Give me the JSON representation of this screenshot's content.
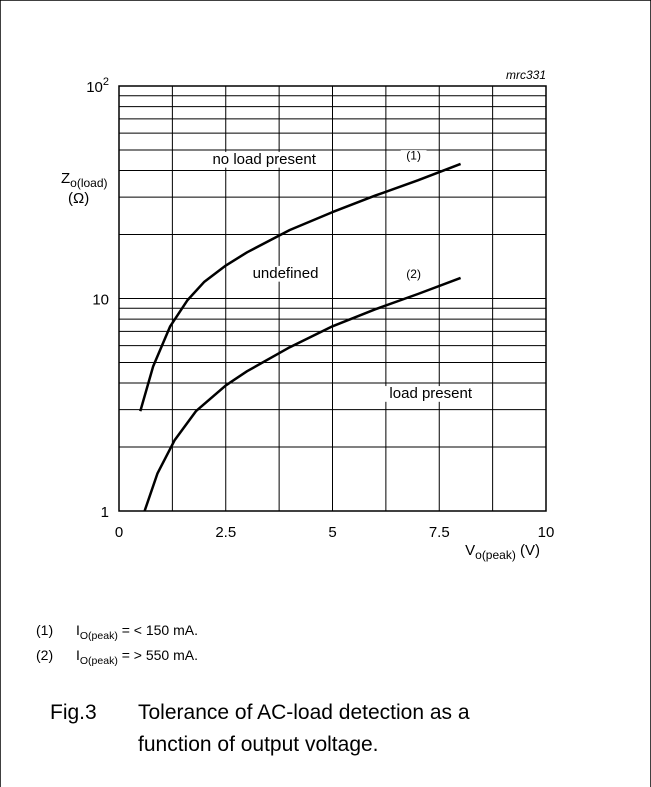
{
  "figure_code": "mrc331",
  "chart_data": {
    "type": "line",
    "x_scale": "linear",
    "y_scale": "log",
    "xlim": [
      0,
      10
    ],
    "ylim": [
      1,
      100
    ],
    "x_ticks": [
      "0",
      "2.5",
      "5",
      "7.5",
      "10"
    ],
    "x_tick_values": [
      0,
      2.5,
      5,
      7.5,
      10
    ],
    "y_ticks": [
      "1",
      "10",
      "10^2"
    ],
    "y_tick_values": [
      1,
      10,
      100
    ],
    "xlabel": {
      "main": "V",
      "sub": "o(peak)",
      "unit": " (V)"
    },
    "ylabel": {
      "main": "Z",
      "sub": "o(load)",
      "unit": "(Ω)"
    },
    "grid": true,
    "series": [
      {
        "name": "(1)",
        "x": [
          0.5,
          0.8,
          1.2,
          1.6,
          2.0,
          2.5,
          3.0,
          4.0,
          5.0,
          6.0,
          7.0,
          8.0
        ],
        "y": [
          2.95,
          4.8,
          7.4,
          9.8,
          12.0,
          14.3,
          16.5,
          21.0,
          25.5,
          30.5,
          36.0,
          43.0
        ]
      },
      {
        "name": "(2)",
        "x": [
          0.6,
          0.9,
          1.3,
          1.8,
          2.5,
          3.0,
          4.0,
          5.0,
          6.0,
          7.0,
          8.0
        ],
        "y": [
          1.0,
          1.5,
          2.15,
          2.95,
          3.9,
          4.55,
          5.9,
          7.4,
          8.9,
          10.5,
          12.5
        ]
      }
    ],
    "annotations": [
      {
        "text": "no load present",
        "x": 3.4,
        "y": 43
      },
      {
        "text": "(1)",
        "x": 6.9,
        "y": 45
      },
      {
        "text": "undefined",
        "x": 3.9,
        "y": 12.5
      },
      {
        "text": "(2)",
        "x": 6.9,
        "y": 12.5
      },
      {
        "text": "load present",
        "x": 7.3,
        "y": 3.4
      }
    ]
  },
  "notes": [
    {
      "num": "(1)",
      "sym": "I",
      "sub": "O(peak)",
      "text": " = < 150 mA."
    },
    {
      "num": "(2)",
      "sym": "I",
      "sub": "O(peak)",
      "text": " = > 550 mA."
    }
  ],
  "caption": {
    "label": "Fig.3",
    "text": "Tolerance of AC-load detection as a function of output voltage."
  }
}
